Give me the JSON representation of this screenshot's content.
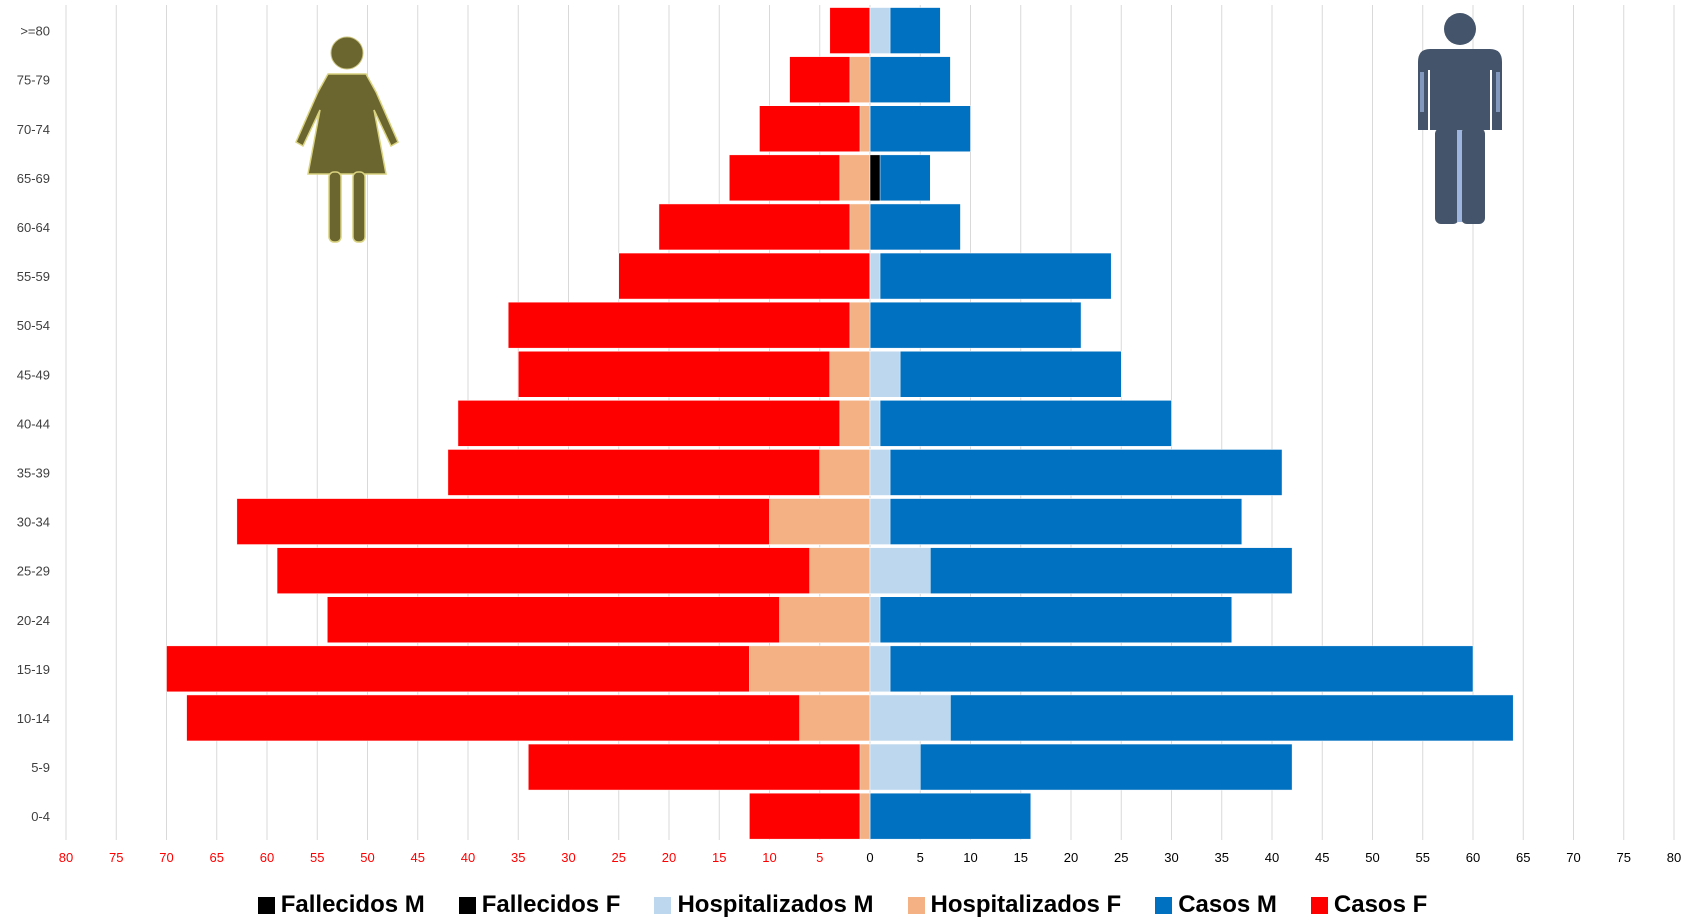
{
  "chart_data": {
    "type": "bar",
    "orientation": "horizontal-diverging",
    "categories": [
      ">=80",
      "75-79",
      "70-74",
      "65-69",
      "60-64",
      "55-59",
      "50-54",
      "45-49",
      "40-44",
      "35-39",
      "30-34",
      "25-29",
      "20-24",
      "15-19",
      "10-14",
      "5-9",
      "0-4"
    ],
    "series": [
      {
        "name": "Fallecidos M",
        "color": "#000000",
        "side": "right",
        "values": [
          0,
          0,
          0,
          1,
          0,
          0,
          0,
          0,
          0,
          0,
          0,
          0,
          0,
          0,
          0,
          0,
          0
        ]
      },
      {
        "name": "Fallecidos F",
        "color": "#000000",
        "side": "left",
        "values": [
          0,
          0,
          0,
          0,
          0,
          0,
          0,
          0,
          0,
          0,
          0,
          0,
          0,
          0,
          0,
          0,
          0
        ]
      },
      {
        "name": "Hospitalizados M",
        "color": "#bdd7ee",
        "side": "right",
        "values": [
          2,
          0,
          0,
          0,
          0,
          1,
          0,
          3,
          1,
          2,
          2,
          6,
          1,
          2,
          8,
          5,
          0
        ]
      },
      {
        "name": "Hospitalizados F",
        "color": "#f4b183",
        "side": "left",
        "values": [
          0,
          2,
          1,
          3,
          2,
          0,
          2,
          4,
          3,
          5,
          10,
          6,
          9,
          12,
          7,
          1,
          1
        ]
      },
      {
        "name": "Casos M",
        "color": "#0070c0",
        "side": "right",
        "values": [
          7,
          8,
          10,
          6,
          9,
          24,
          21,
          25,
          30,
          41,
          37,
          42,
          36,
          60,
          64,
          42,
          16
        ]
      },
      {
        "name": "Casos F",
        "color": "#ff0000",
        "side": "left",
        "values": [
          4,
          8,
          11,
          14,
          21,
          25,
          36,
          35,
          41,
          42,
          63,
          59,
          54,
          70,
          68,
          34,
          12
        ]
      }
    ],
    "x_ticks": [
      80,
      75,
      70,
      65,
      60,
      55,
      50,
      45,
      40,
      35,
      30,
      25,
      20,
      15,
      10,
      5,
      0,
      5,
      10,
      15,
      20,
      25,
      30,
      35,
      40,
      45,
      50,
      55,
      60,
      65,
      70,
      75,
      80
    ],
    "xlim": [
      -80,
      80
    ],
    "left_tick_color": "#ff0000",
    "right_tick_color": "#000000",
    "grid": "vertical",
    "legend_position": "bottom",
    "icons": {
      "left": "female-figure-icon",
      "right": "male-figure-icon"
    },
    "icon_colors": {
      "female": "#6b6530",
      "male": "#44546a"
    }
  }
}
